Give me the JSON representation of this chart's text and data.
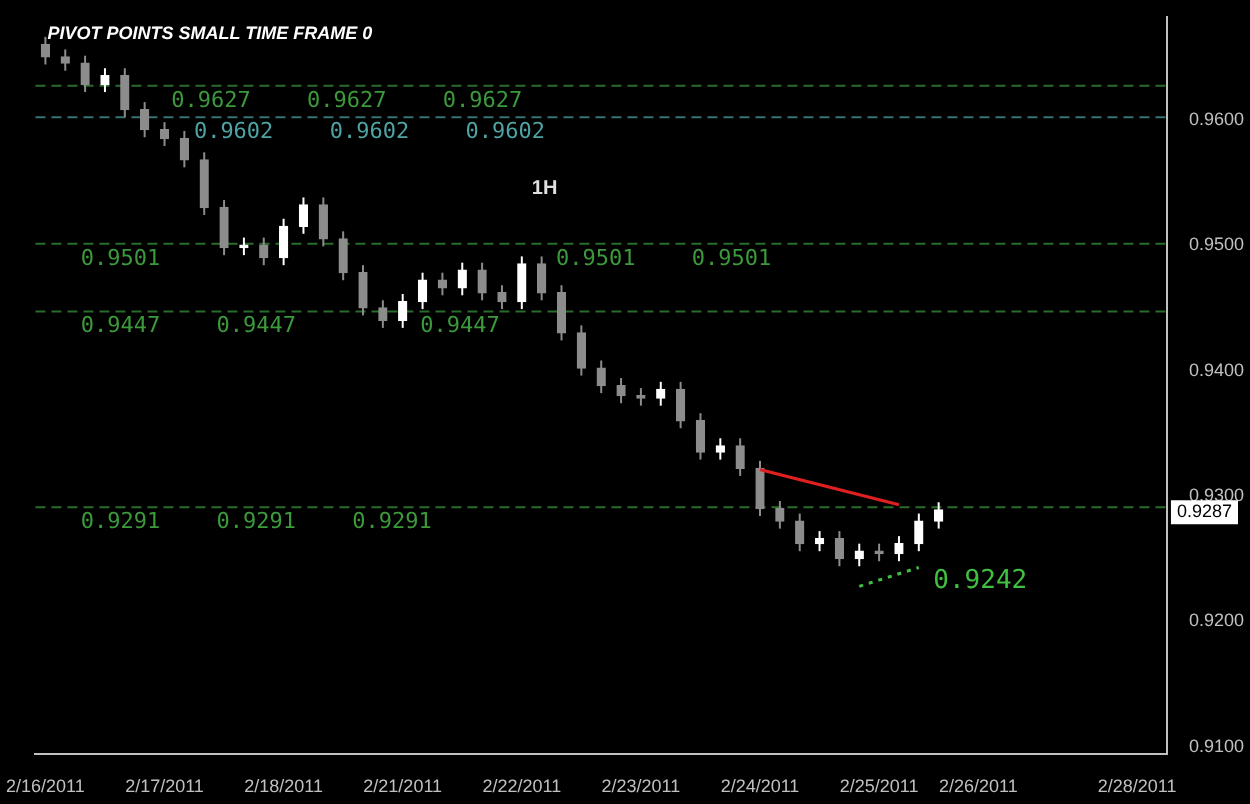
{
  "chart_data": {
    "type": "candlestick",
    "title": "PIVOT POINTS SMALL TIME FRAME 0",
    "colors": [
      "#8c8c8c",
      "#8c8c8c",
      "#8c8c8c",
      "#ffffff",
      "#8c8c8c",
      "#8c8c8c",
      "#8c8c8c",
      "#8c8c8c",
      "#8c8c8c",
      "#8c8c8c",
      "#ffffff",
      "#8c8c8c",
      "#ffffff",
      "#ffffff",
      "#8c8c8c",
      "#8c8c8c",
      "#8c8c8c",
      "#8c8c8c",
      "#ffffff",
      "#ffffff",
      "#8c8c8c",
      "#ffffff",
      "#8c8c8c",
      "#8c8c8c",
      "#ffffff",
      "#8c8c8c",
      "#8c8c8c",
      "#8c8c8c",
      "#8c8c8c",
      "#8c8c8c",
      "#8c8c8c",
      "#ffffff",
      "#8c8c8c",
      "#8c8c8c",
      "#ffffff",
      "#8c8c8c",
      "#8c8c8c",
      "#8c8c8c",
      "#8c8c8c",
      "#ffffff",
      "#8c8c8c",
      "#ffffff",
      "#8c8c8c",
      "#ffffff",
      "#ffffff",
      "#ffffff",
      null,
      null,
      null,
      null,
      null,
      null,
      null,
      null,
      null,
      null,
      null
    ],
    "categories": [
      "2/16/2011",
      null,
      null,
      null,
      null,
      null,
      "2/17/2011",
      null,
      null,
      null,
      null,
      null,
      "2/18/2011",
      null,
      null,
      null,
      null,
      null,
      "2/21/2011",
      null,
      null,
      null,
      null,
      null,
      "2/22/2011",
      null,
      null,
      null,
      null,
      null,
      "2/23/2011",
      null,
      null,
      null,
      null,
      null,
      "2/24/2011",
      null,
      null,
      null,
      null,
      null,
      "2/25/2011",
      null,
      null,
      null,
      null,
      "2/26/2011",
      null,
      null,
      null,
      null,
      null,
      null,
      null,
      "2/28/2011",
      null
    ],
    "ohlc": [
      [
        0.966,
        0.9666,
        0.9644,
        0.965
      ],
      [
        0.965,
        0.9656,
        0.9639,
        0.9645
      ],
      [
        0.9645,
        0.9651,
        0.9622,
        0.9628
      ],
      [
        0.9628,
        0.9641,
        0.9622,
        0.9635
      ],
      [
        0.9635,
        0.9641,
        0.9602,
        0.9608
      ],
      [
        0.9608,
        0.9614,
        0.9586,
        0.9592
      ],
      [
        0.9592,
        0.9598,
        0.9579,
        0.9585
      ],
      [
        0.9585,
        0.9591,
        0.9562,
        0.9568
      ],
      [
        0.9568,
        0.9574,
        0.9524,
        0.953
      ],
      [
        0.953,
        0.9536,
        0.9492,
        0.9498
      ],
      [
        0.9498,
        0.9506,
        0.9492,
        0.95
      ],
      [
        0.95,
        0.9506,
        0.9484,
        0.949
      ],
      [
        0.949,
        0.9521,
        0.9484,
        0.9515
      ],
      [
        0.9515,
        0.9538,
        0.9509,
        0.9532
      ],
      [
        0.9532,
        0.9538,
        0.9499,
        0.9505
      ],
      [
        0.9505,
        0.9511,
        0.9472,
        0.9478
      ],
      [
        0.9478,
        0.9484,
        0.9444,
        0.945
      ],
      [
        0.945,
        0.9456,
        0.9434,
        0.944
      ],
      [
        0.944,
        0.9461,
        0.9434,
        0.9455
      ],
      [
        0.9455,
        0.9478,
        0.9449,
        0.9472
      ],
      [
        0.9472,
        0.9478,
        0.946,
        0.9466
      ],
      [
        0.9466,
        0.9486,
        0.946,
        0.948
      ],
      [
        0.948,
        0.9486,
        0.9456,
        0.9462
      ],
      [
        0.9462,
        0.9468,
        0.9449,
        0.9455
      ],
      [
        0.9455,
        0.9491,
        0.9449,
        0.9485
      ],
      [
        0.9485,
        0.9491,
        0.9456,
        0.9462
      ],
      [
        0.9462,
        0.9468,
        0.9424,
        0.943
      ],
      [
        0.943,
        0.9436,
        0.9396,
        0.9402
      ],
      [
        0.9402,
        0.9408,
        0.9382,
        0.9388
      ],
      [
        0.9388,
        0.9394,
        0.9374,
        0.938
      ],
      [
        0.938,
        0.9386,
        0.9372,
        0.9378
      ],
      [
        0.9378,
        0.9391,
        0.9372,
        0.9385
      ],
      [
        0.9385,
        0.9391,
        0.9354,
        0.936
      ],
      [
        0.936,
        0.9366,
        0.9329,
        0.9335
      ],
      [
        0.9335,
        0.9346,
        0.9329,
        0.934
      ],
      [
        0.934,
        0.9346,
        0.9316,
        0.9322
      ],
      [
        0.9322,
        0.9328,
        0.9284,
        0.929
      ],
      [
        0.929,
        0.9296,
        0.9274,
        0.928
      ],
      [
        0.928,
        0.9286,
        0.9256,
        0.9262
      ],
      [
        0.9262,
        0.9272,
        0.9256,
        0.9266
      ],
      [
        0.9266,
        0.9272,
        0.9244,
        0.925
      ],
      [
        0.925,
        0.9262,
        0.9244,
        0.9256
      ],
      [
        0.9256,
        0.9262,
        0.9248,
        0.9254
      ],
      [
        0.9254,
        0.9268,
        0.9248,
        0.9262
      ],
      [
        0.9262,
        0.9286,
        0.9256,
        0.928
      ],
      [
        0.928,
        0.9295,
        0.9274,
        0.9289
      ],
      null,
      null,
      null,
      null,
      null,
      null,
      null,
      null,
      null,
      null,
      null
    ],
    "series": [
      {
        "type": "line",
        "color": "#e02020",
        "line_style": "solid",
        "values": [
          null,
          null,
          null,
          null,
          null,
          null,
          null,
          null,
          null,
          null,
          null,
          null,
          null,
          null,
          null,
          null,
          null,
          null,
          null,
          null,
          null,
          null,
          null,
          null,
          null,
          null,
          null,
          null,
          null,
          null,
          null,
          null,
          null,
          null,
          null,
          null,
          0.9321,
          null,
          null,
          null,
          null,
          null,
          null,
          0.9293,
          null,
          null,
          null,
          null,
          null,
          null,
          null,
          null,
          null,
          null,
          null,
          null,
          null
        ]
      },
      {
        "type": "line",
        "color": "#40c040",
        "line_style": "dotted",
        "values": [
          null,
          null,
          null,
          null,
          null,
          null,
          null,
          null,
          null,
          null,
          null,
          null,
          null,
          null,
          null,
          null,
          null,
          null,
          null,
          null,
          null,
          null,
          null,
          null,
          null,
          null,
          null,
          null,
          null,
          null,
          null,
          null,
          null,
          null,
          null,
          null,
          null,
          null,
          null,
          null,
          null,
          0.9228,
          null,
          null,
          0.9243,
          null,
          null,
          null,
          null,
          null,
          null,
          null,
          null,
          null,
          null,
          null,
          null
        ]
      }
    ],
    "ylim": [
      0.9094,
      0.9682
    ],
    "yticks": [
      {
        "value": 0.91,
        "label": "0.9100"
      },
      {
        "value": 0.92,
        "label": "0.9200"
      },
      {
        "value": 0.93,
        "label": "0.9300"
      },
      {
        "value": 0.94,
        "label": "0.9400"
      },
      {
        "value": 0.95,
        "label": "0.9500"
      },
      {
        "value": 0.96,
        "label": "0.9600"
      }
    ],
    "grid": false,
    "ref_lines": [
      {
        "axis": "y",
        "value": 0.9627,
        "label": "0.9627",
        "color": "#3c9a3c",
        "line_style": "dashed"
      },
      {
        "axis": "y",
        "value": 0.9602,
        "label": "0.9602",
        "color": "#4fa3a3",
        "line_style": "dashed"
      },
      {
        "axis": "y",
        "value": 0.9501,
        "label": "0.9501",
        "color": "#3c9a3c",
        "line_style": "dashed"
      },
      {
        "axis": "y",
        "value": 0.9447,
        "label": "0.9447",
        "color": "#3c9a3c",
        "line_style": "dashed"
      },
      {
        "axis": "y",
        "value": 0.9291,
        "label": "0.9291",
        "color": "#3c9a3c",
        "line_style": "dashed"
      }
    ],
    "annotations": [
      "1H",
      {
        "text": "0.9287",
        "y": 0.9287
      },
      "0.9242"
    ]
  }
}
